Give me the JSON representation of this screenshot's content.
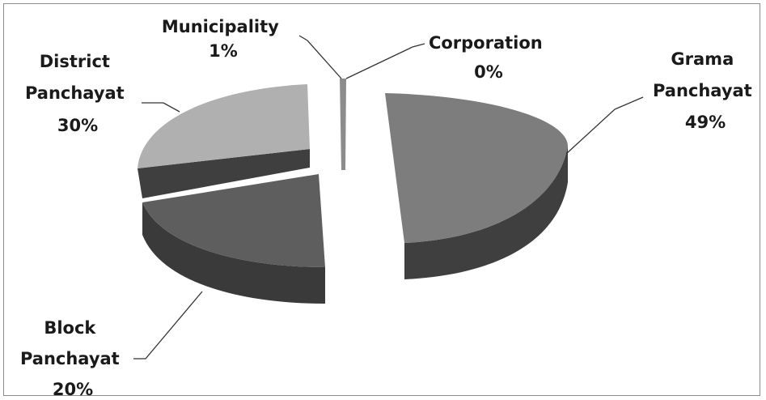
{
  "chart_data": {
    "type": "pie",
    "style": "3d-exploded",
    "title": "",
    "slices": [
      {
        "name_lines": [
          "Grama",
          "Panchayat"
        ],
        "percent_label": "49%",
        "value": 49,
        "color": "#7d7d7d"
      },
      {
        "name_lines": [
          "Block",
          "Panchayat"
        ],
        "percent_label": "20%",
        "value": 20,
        "color": "#5e5e5e"
      },
      {
        "name_lines": [
          "District",
          "Panchayat"
        ],
        "percent_label": "30%",
        "value": 30,
        "color": "#b0b0b0"
      },
      {
        "name_lines": [
          "Municipality"
        ],
        "percent_label": "1%",
        "value": 1,
        "color": "#8c8c8c"
      },
      {
        "name_lines": [
          "Corporation"
        ],
        "percent_label": "0%",
        "value": 0,
        "color": "#999999"
      }
    ]
  }
}
